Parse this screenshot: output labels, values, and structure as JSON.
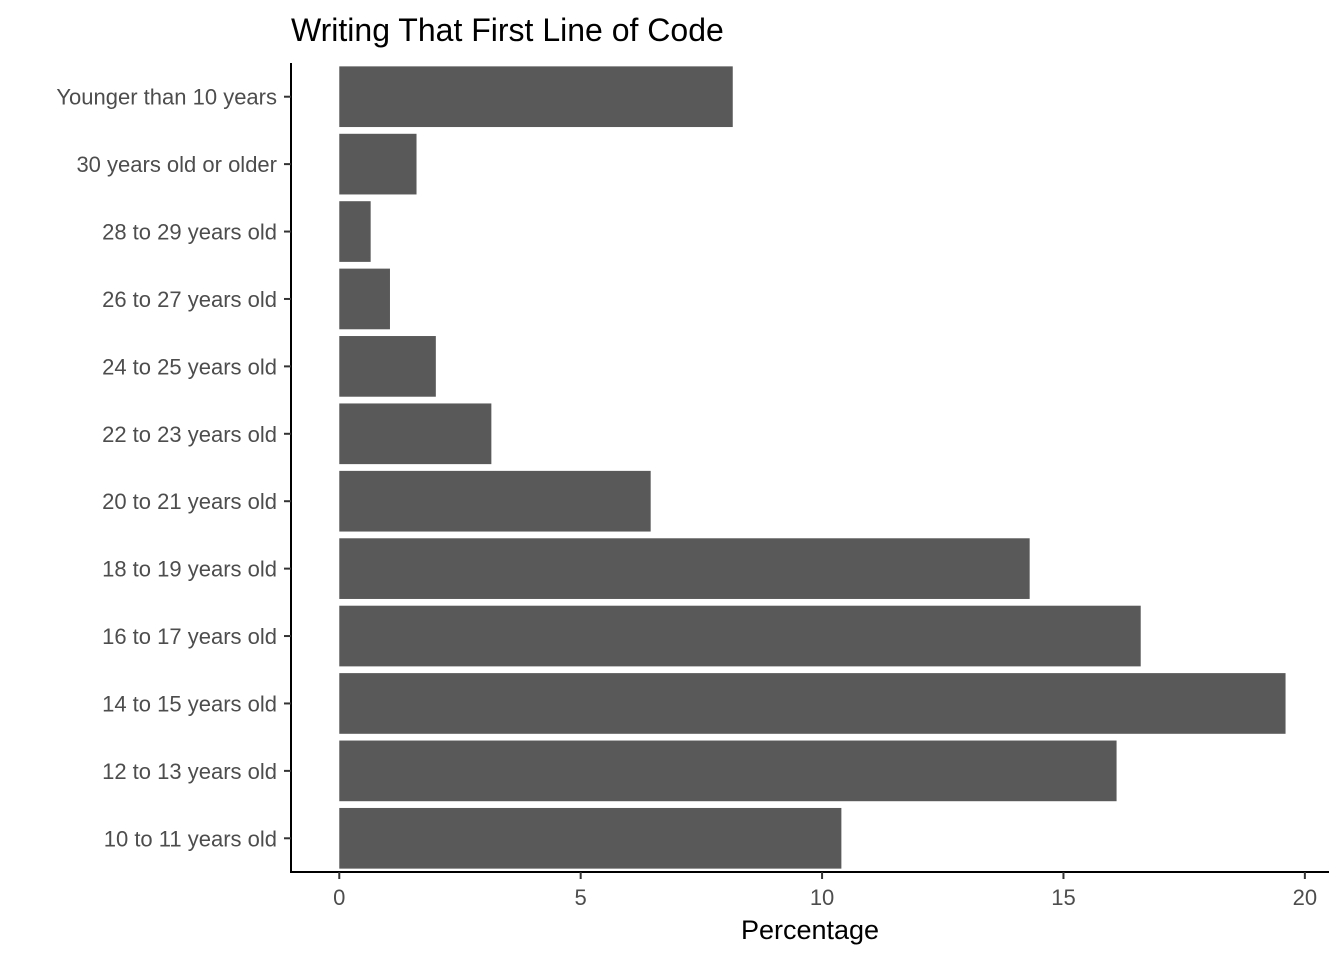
{
  "chart_data": {
    "type": "bar",
    "orientation": "horizontal",
    "title": "Writing That First Line of Code",
    "xlabel": "Percentage",
    "ylabel": "",
    "xlim": [
      -1,
      20.5
    ],
    "xticks": [
      0,
      5,
      10,
      15,
      20
    ],
    "grid": false,
    "legend": "none",
    "bar_color": "#595959",
    "categories": [
      "10 to 11 years old",
      "12 to 13 years old",
      "14 to 15 years old",
      "16 to 17 years old",
      "18 to 19 years old",
      "20 to 21 years old",
      "22 to 23 years old",
      "24 to 25 years old",
      "26 to 27 years old",
      "28 to 29 years old",
      "30 years old or older",
      "Younger than 10 years"
    ],
    "values": [
      10.4,
      16.1,
      19.6,
      16.6,
      14.3,
      6.45,
      3.15,
      2.0,
      1.05,
      0.65,
      1.6,
      8.15
    ]
  }
}
